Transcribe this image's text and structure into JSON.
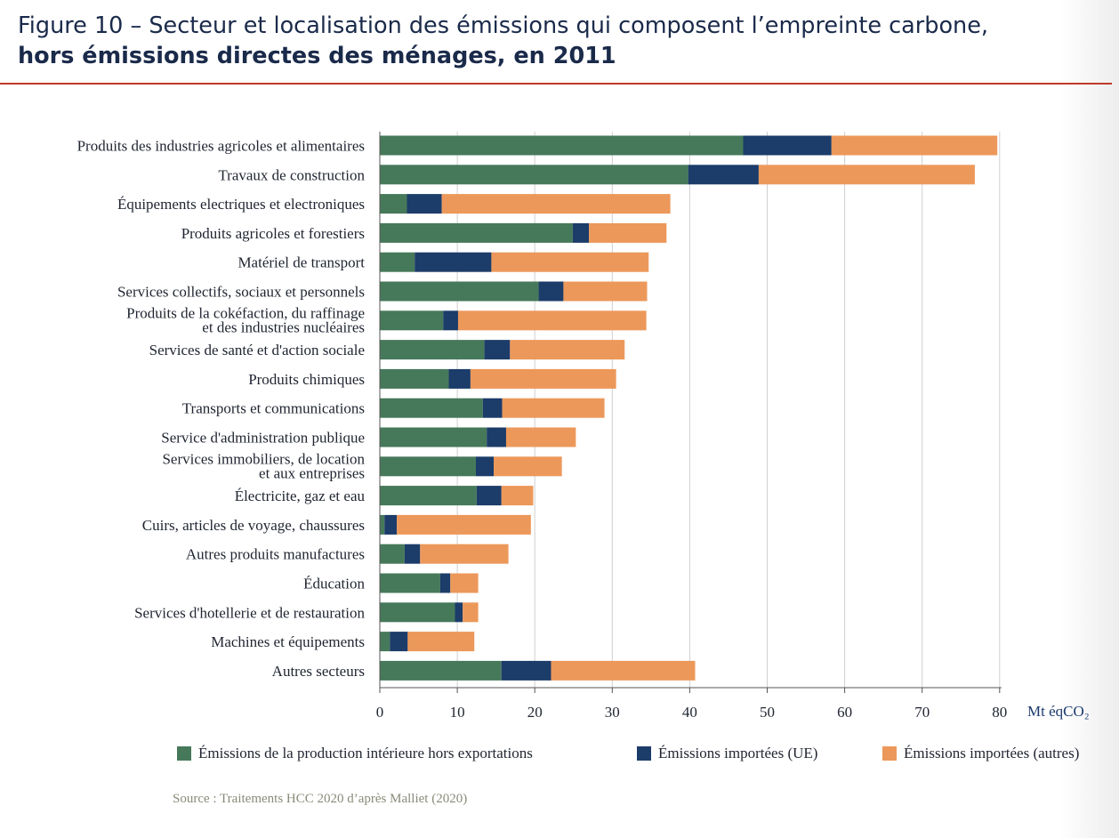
{
  "title": {
    "line1": "Figure 10 – Secteur et localisation des émissions qui composent l’empreinte carbone,",
    "line2": "hors émissions directes des ménages, en 2011"
  },
  "source": "Source : Traitements HCC 2020 d’après Malliet (2020)",
  "chart_data": {
    "type": "bar",
    "orientation": "horizontal",
    "stacked": true,
    "categories": [
      [
        "Produits des industries agricoles et alimentaires"
      ],
      [
        "Travaux de construction"
      ],
      [
        "Équipements electriques et electroniques"
      ],
      [
        "Produits agricoles et forestiers"
      ],
      [
        "Matériel de transport"
      ],
      [
        "Services collectifs, sociaux et personnels"
      ],
      [
        "Produits de la cokéfaction, du raffinage",
        "et des industries nucléaires"
      ],
      [
        "Services de santé et d'action sociale"
      ],
      [
        "Produits chimiques"
      ],
      [
        "Transports et communications"
      ],
      [
        "Service d'administration publique"
      ],
      [
        "Services immobiliers, de location",
        "et aux entreprises"
      ],
      [
        "Électricite, gaz et eau"
      ],
      [
        "Cuirs, articles de voyage, chaussures"
      ],
      [
        "Autres produits manufactures"
      ],
      [
        "Éducation"
      ],
      [
        "Services d'hotellerie et de restauration"
      ],
      [
        "Machines et équipements"
      ],
      [
        "Autres secteurs"
      ]
    ],
    "series": [
      {
        "name": "Émissions de la production intérieure hors exportations",
        "color": "#46795a",
        "values": [
          46.9,
          39.8,
          3.5,
          24.9,
          4.5,
          20.5,
          8.2,
          13.5,
          8.9,
          13.3,
          13.8,
          12.4,
          12.5,
          0.6,
          3.2,
          7.8,
          9.7,
          1.3,
          15.7
        ]
      },
      {
        "name": "Émissions importées (UE)",
        "color": "#1c3c6a",
        "values": [
          11.4,
          9.1,
          4.5,
          2.1,
          9.9,
          3.2,
          1.9,
          3.3,
          2.8,
          2.5,
          2.5,
          2.3,
          3.2,
          1.6,
          2.0,
          1.3,
          1.0,
          2.3,
          6.4
        ]
      },
      {
        "name": "Émissions importées (autres)",
        "color": "#ec985a",
        "values": [
          21.4,
          27.9,
          29.5,
          10.0,
          20.3,
          10.8,
          24.3,
          14.8,
          18.8,
          13.2,
          9.0,
          8.8,
          4.1,
          17.3,
          11.4,
          3.6,
          2.0,
          8.6,
          18.6
        ]
      }
    ],
    "x_ticks": [
      0,
      10,
      20,
      30,
      40,
      50,
      60,
      70,
      80
    ],
    "xlim": [
      0,
      80
    ],
    "x_unit": "Mt éqCO₂",
    "grid": "vertical",
    "legend_position": "bottom"
  }
}
